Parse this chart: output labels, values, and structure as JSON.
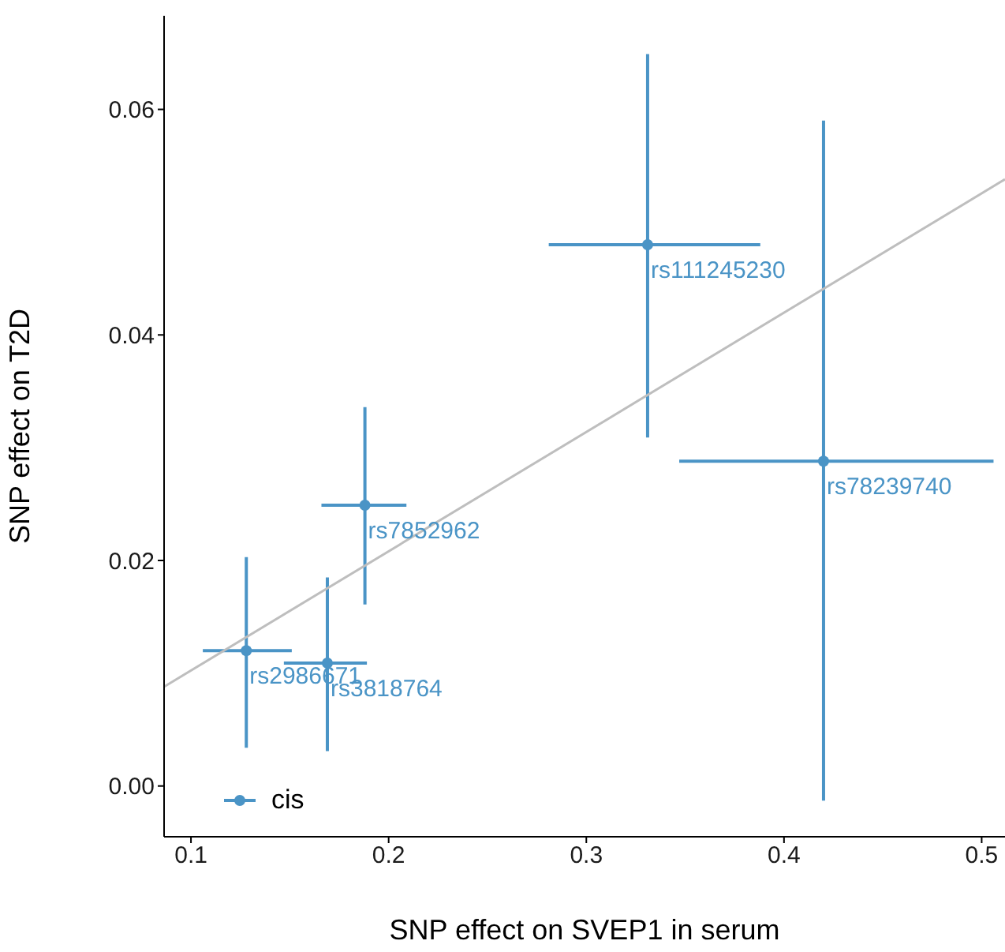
{
  "chart_data": {
    "type": "scatter",
    "xlabel": "SNP effect on SVEP1 in serum",
    "ylabel": "SNP effect on T2D",
    "xlim": [
      0.0864,
      0.5118
    ],
    "xticks": [
      0.1,
      0.2,
      0.3,
      0.4,
      0.5
    ],
    "ylim": [
      -0.0045,
      0.0683
    ],
    "yticks": [
      {
        "value": 0,
        "label": "0.00"
      },
      {
        "value": 0.02,
        "label": "0.02"
      },
      {
        "value": 0.04,
        "label": "0.04"
      },
      {
        "value": 0.06,
        "label": "0.06"
      }
    ],
    "grid": false,
    "legend": "bottom left",
    "series": [
      {
        "name": "cis",
        "marker": "circle",
        "color": "#4a94c6",
        "x": [
          0.128,
          0.169,
          0.188,
          0.331,
          0.42
        ],
        "values": [
          0.012,
          0.0109,
          0.0249,
          0.048,
          0.0288
        ],
        "errors": [
          [
            0.0034,
            0.0203
          ],
          [
            0.0031,
            0.0185
          ],
          [
            0.0161,
            0.0336
          ],
          [
            0.0309,
            0.0649
          ],
          [
            -0.0013,
            0.059
          ]
        ],
        "xerrors": [
          [
            0.106,
            0.151
          ],
          [
            0.147,
            0.189
          ],
          [
            0.166,
            0.209
          ],
          [
            0.281,
            0.388
          ],
          [
            0.347,
            0.506
          ]
        ]
      },
      {
        "type": "line",
        "color": "#bebebe",
        "x": [
          0.0864,
          0.5118
        ],
        "values": [
          0.0088,
          0.0538
        ]
      }
    ],
    "annotations": [
      {
        "text": "rs2986671",
        "x": 0.128,
        "y": 0.012
      },
      {
        "text": "rs3818764",
        "x": 0.169,
        "y": 0.0109
      },
      {
        "text": "rs7852962",
        "x": 0.188,
        "y": 0.0249
      },
      {
        "text": "rs111245230",
        "x": 0.331,
        "y": 0.048
      },
      {
        "text": "rs78239740",
        "x": 0.42,
        "y": 0.0288
      }
    ]
  }
}
